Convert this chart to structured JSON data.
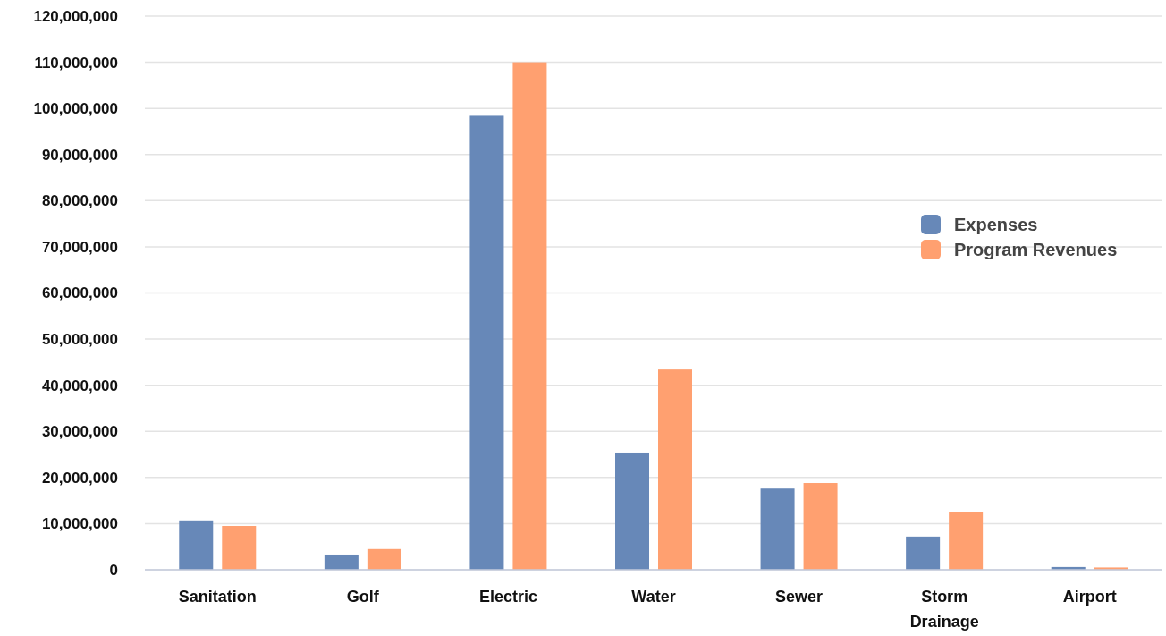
{
  "chart_data": {
    "type": "bar",
    "categories": [
      "Sanitation",
      "Golf",
      "Electric",
      "Water",
      "Sewer",
      "Storm Drainage",
      "Airport"
    ],
    "series": [
      {
        "name": "Expenses",
        "color": "#6788b8",
        "values": [
          10700000,
          3300000,
          98400000,
          25400000,
          17600000,
          7200000,
          600000
        ]
      },
      {
        "name": "Program Revenues",
        "color": "#ffa070",
        "values": [
          9500000,
          4500000,
          110000000,
          43400000,
          18800000,
          12600000,
          500000
        ]
      }
    ],
    "ylim": [
      0,
      120000000
    ],
    "yticks": [
      {
        "value": 0,
        "label": "0"
      },
      {
        "value": 10000000,
        "label": "10,000,000"
      },
      {
        "value": 20000000,
        "label": "20,000,000"
      },
      {
        "value": 30000000,
        "label": "30,000,000"
      },
      {
        "value": 40000000,
        "label": "40,000,000"
      },
      {
        "value": 50000000,
        "label": "50,000,000"
      },
      {
        "value": 60000000,
        "label": "60,000,000"
      },
      {
        "value": 70000000,
        "label": "70,000,000"
      },
      {
        "value": 80000000,
        "label": "80,000,000"
      },
      {
        "value": 90000000,
        "label": "90,000,000"
      },
      {
        "value": 100000000,
        "label": "100,000,000"
      },
      {
        "value": 110000000,
        "label": "110,000,000"
      },
      {
        "value": 120000000,
        "label": "120,000,000"
      }
    ],
    "grid": "y",
    "legend": "right"
  }
}
